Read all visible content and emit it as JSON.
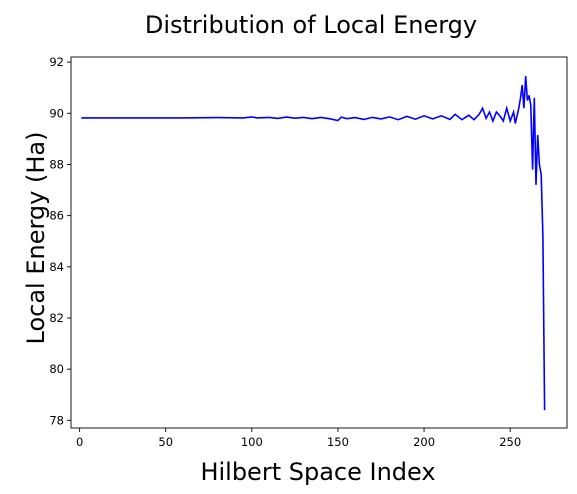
{
  "chart_data": {
    "type": "line",
    "title": "Distribution of Local Energy",
    "xlabel": "Hilbert Space Index",
    "ylabel": "Local Energy (Ha)",
    "xlim": [
      -5,
      283
    ],
    "ylim": [
      77.7,
      92.2
    ],
    "xticks": [
      0,
      50,
      100,
      150,
      200,
      250
    ],
    "yticks": [
      78,
      80,
      82,
      84,
      86,
      88,
      90,
      92
    ],
    "grid": false,
    "series": [
      {
        "color": "#0000ff",
        "points": [
          [
            1,
            89.82
          ],
          [
            20,
            89.82
          ],
          [
            40,
            89.82
          ],
          [
            60,
            89.82
          ],
          [
            80,
            89.83
          ],
          [
            95,
            89.82
          ],
          [
            100,
            89.86
          ],
          [
            103,
            89.82
          ],
          [
            110,
            89.84
          ],
          [
            115,
            89.8
          ],
          [
            120,
            89.85
          ],
          [
            125,
            89.81
          ],
          [
            130,
            89.84
          ],
          [
            135,
            89.79
          ],
          [
            140,
            89.84
          ],
          [
            145,
            89.79
          ],
          [
            150,
            89.72
          ],
          [
            152,
            89.85
          ],
          [
            155,
            89.79
          ],
          [
            160,
            89.83
          ],
          [
            165,
            89.76
          ],
          [
            170,
            89.84
          ],
          [
            175,
            89.78
          ],
          [
            180,
            89.86
          ],
          [
            185,
            89.75
          ],
          [
            190,
            89.88
          ],
          [
            195,
            89.77
          ],
          [
            200,
            89.9
          ],
          [
            205,
            89.78
          ],
          [
            210,
            89.9
          ],
          [
            215,
            89.76
          ],
          [
            218,
            89.96
          ],
          [
            222,
            89.75
          ],
          [
            226,
            89.92
          ],
          [
            229,
            89.75
          ],
          [
            232,
            89.96
          ],
          [
            234,
            90.2
          ],
          [
            236,
            89.8
          ],
          [
            238,
            90.05
          ],
          [
            240,
            89.7
          ],
          [
            242,
            90.05
          ],
          [
            244,
            89.9
          ],
          [
            246,
            89.7
          ],
          [
            248,
            90.2
          ],
          [
            250,
            89.7
          ],
          [
            252,
            90.05
          ],
          [
            253,
            89.6
          ],
          [
            255,
            90.2
          ],
          [
            256,
            90.6
          ],
          [
            257,
            91.1
          ],
          [
            258,
            90.2
          ],
          [
            259,
            91.45
          ],
          [
            260,
            90.5
          ],
          [
            261,
            90.7
          ],
          [
            262,
            90.3
          ],
          [
            263,
            87.8
          ],
          [
            264,
            90.6
          ],
          [
            265,
            87.2
          ],
          [
            266,
            89.15
          ],
          [
            267,
            88.0
          ],
          [
            268,
            87.6
          ],
          [
            269,
            85.2
          ],
          [
            270,
            78.4
          ]
        ]
      }
    ]
  }
}
